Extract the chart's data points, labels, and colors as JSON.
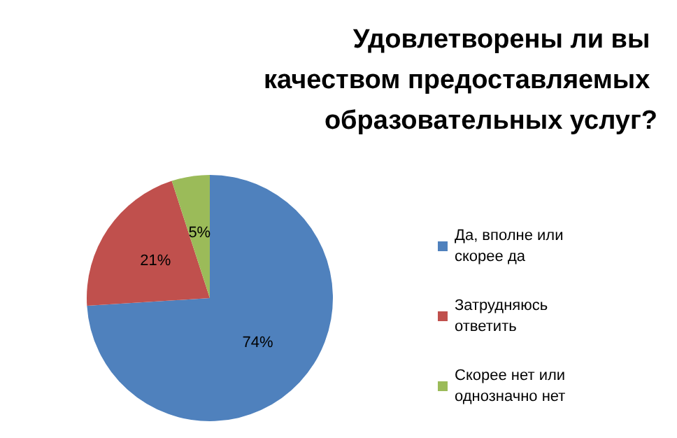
{
  "chart_data": {
    "type": "pie",
    "title": "Удовлетворены ли вы качеством предоставляемых образовательных услуг?",
    "categories": [
      "Да, вполне или скорее да",
      "Затрудняюсь ответить",
      "Скорее нет или однозначно нет"
    ],
    "values": [
      74,
      21,
      5
    ],
    "colors": [
      "#4f81bd",
      "#c0504d",
      "#9bbb59"
    ],
    "value_labels": [
      "74%",
      "21%",
      "5%"
    ],
    "legend": "right"
  }
}
